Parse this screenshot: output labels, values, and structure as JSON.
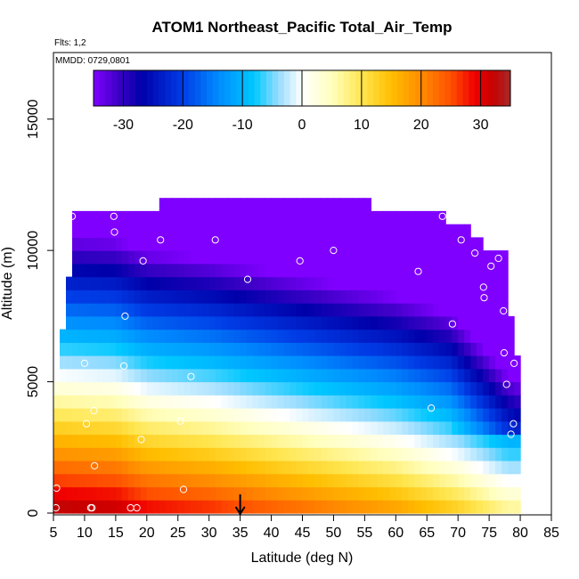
{
  "chart_data": {
    "type": "heatmap",
    "title": "ATOM1 Northeast_Pacific Total_Air_Temp",
    "flights_note": "Flts: 1,2",
    "date_note": "MMDD: 0729,0801",
    "xlabel": "Latitude (deg N)",
    "ylabel": "Altitude (m)",
    "xlim": [
      5,
      85
    ],
    "ylim": [
      0,
      17500
    ],
    "xticks": [
      "5",
      "10",
      "15",
      "20",
      "25",
      "30",
      "35",
      "40",
      "45",
      "50",
      "55",
      "60",
      "65",
      "70",
      "75",
      "80",
      "85"
    ],
    "yticks": [
      "0",
      "5000",
      "10000",
      "15000"
    ],
    "colorbar": {
      "range": [
        -35,
        35
      ],
      "ticks": [
        "-30",
        "-20",
        "-10",
        "0",
        "10",
        "20",
        "30"
      ]
    },
    "marker_latitude": 35,
    "grid": false,
    "legend": "none",
    "colors": {
      "cold": "#7f00ff",
      "cool": "#00bfff",
      "neutral": "#ffffe0",
      "warm": "#ff8c00",
      "hot": "#a52a2a"
    },
    "surface_temp_at_lat": [
      [
        5,
        34
      ],
      [
        15,
        33
      ],
      [
        20,
        30
      ],
      [
        30,
        28
      ],
      [
        40,
        25
      ],
      [
        50,
        22
      ],
      [
        60,
        19
      ],
      [
        70,
        14
      ],
      [
        78,
        8
      ]
    ],
    "lapse_rate_c_per_km": 6.5,
    "profile_top_altitude_by_lat": [
      [
        5,
        5000
      ],
      [
        6,
        7000
      ],
      [
        7,
        9000
      ],
      [
        8,
        11500
      ],
      [
        22,
        11500
      ],
      [
        22,
        12000
      ],
      [
        40,
        12000
      ],
      [
        56,
        11500
      ],
      [
        68,
        11000
      ],
      [
        71,
        11000
      ],
      [
        72,
        10500
      ],
      [
        74,
        10000
      ],
      [
        77,
        10000
      ],
      [
        78,
        7500
      ],
      [
        79,
        6000
      ],
      [
        80,
        3000
      ]
    ],
    "observations": [
      {
        "lat": 5.4,
        "alt": 200
      },
      {
        "lat": 5.5,
        "alt": 950
      },
      {
        "lat": 5.2,
        "alt": 4800
      },
      {
        "lat": 8.0,
        "alt": 11300
      },
      {
        "lat": 10.0,
        "alt": 5700
      },
      {
        "lat": 10.3,
        "alt": 3400
      },
      {
        "lat": 11.0,
        "alt": 200
      },
      {
        "lat": 11.2,
        "alt": 200
      },
      {
        "lat": 11.5,
        "alt": 3900
      },
      {
        "lat": 11.6,
        "alt": 1800
      },
      {
        "lat": 14.7,
        "alt": 11300
      },
      {
        "lat": 14.8,
        "alt": 10700
      },
      {
        "lat": 16.3,
        "alt": 5600
      },
      {
        "lat": 16.5,
        "alt": 7500
      },
      {
        "lat": 17.4,
        "alt": 200
      },
      {
        "lat": 18.4,
        "alt": 200
      },
      {
        "lat": 19.1,
        "alt": 2800
      },
      {
        "lat": 19.4,
        "alt": 9600
      },
      {
        "lat": 22.2,
        "alt": 10400
      },
      {
        "lat": 25.4,
        "alt": 3500
      },
      {
        "lat": 25.9,
        "alt": 900
      },
      {
        "lat": 27.1,
        "alt": 5200
      },
      {
        "lat": 27.4,
        "alt": 12700
      },
      {
        "lat": 31.0,
        "alt": 10400
      },
      {
        "lat": 36.2,
        "alt": 8900
      },
      {
        "lat": 44.6,
        "alt": 9600
      },
      {
        "lat": 50.0,
        "alt": 10000
      },
      {
        "lat": 63.6,
        "alt": 9200
      },
      {
        "lat": 65.7,
        "alt": 4000
      },
      {
        "lat": 67.5,
        "alt": 11300
      },
      {
        "lat": 69.1,
        "alt": 7200
      },
      {
        "lat": 70.5,
        "alt": 10400
      },
      {
        "lat": 72.7,
        "alt": 9900
      },
      {
        "lat": 74.1,
        "alt": 8600
      },
      {
        "lat": 74.2,
        "alt": 8200
      },
      {
        "lat": 75.3,
        "alt": 9400
      },
      {
        "lat": 76.5,
        "alt": 9700
      },
      {
        "lat": 77.3,
        "alt": 7700
      },
      {
        "lat": 77.4,
        "alt": 6100
      },
      {
        "lat": 77.8,
        "alt": 4900
      },
      {
        "lat": 78.1,
        "alt": 1200
      },
      {
        "lat": 78.5,
        "alt": 3000
      },
      {
        "lat": 78.9,
        "alt": 3400
      },
      {
        "lat": 79.0,
        "alt": 5700
      }
    ]
  }
}
